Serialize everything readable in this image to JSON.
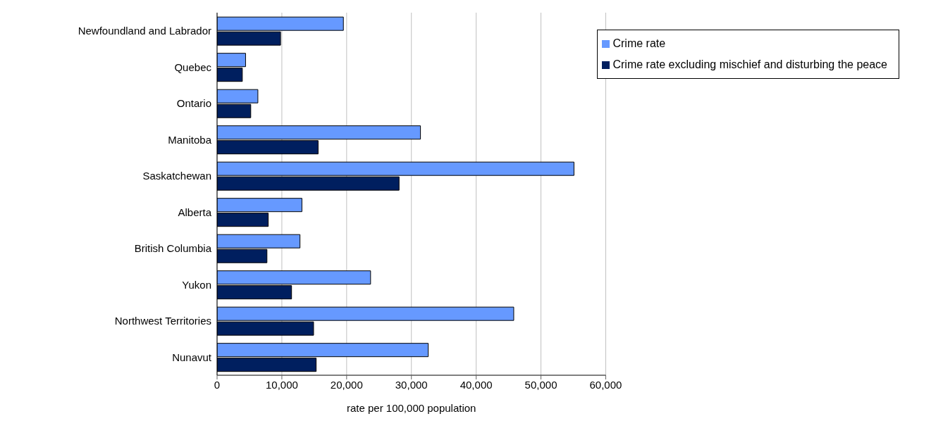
{
  "chart_data": {
    "type": "bar",
    "orientation": "horizontal",
    "xlabel": "rate per 100,000 population",
    "categories": [
      "Newfoundland and Labrador",
      "Quebec",
      "Ontario",
      "Manitoba",
      "Saskatchewan",
      "Alberta",
      "British Columbia",
      "Yukon",
      "Northwest Territories",
      "Nunavut"
    ],
    "series": [
      {
        "name": "Crime rate",
        "color": "#6699ff",
        "values": [
          19500,
          4400,
          6300,
          31400,
          55100,
          13100,
          12800,
          23700,
          45800,
          32600
        ]
      },
      {
        "name": "Crime rate excluding mischief and disturbing the peace",
        "color": "#001f5f",
        "values": [
          9800,
          3900,
          5200,
          15600,
          28100,
          7900,
          7700,
          11500,
          14900,
          15300
        ]
      }
    ],
    "xlim": [
      0,
      60000
    ],
    "xticks": [
      {
        "value": 0,
        "label": "0"
      },
      {
        "value": 10000,
        "label": "10,000"
      },
      {
        "value": 20000,
        "label": "20,000"
      },
      {
        "value": 30000,
        "label": "30,000"
      },
      {
        "value": 40000,
        "label": "40,000"
      },
      {
        "value": 50000,
        "label": "50,000"
      },
      {
        "value": 60000,
        "label": "60,000"
      }
    ],
    "grid": "x",
    "legend": "top right"
  }
}
